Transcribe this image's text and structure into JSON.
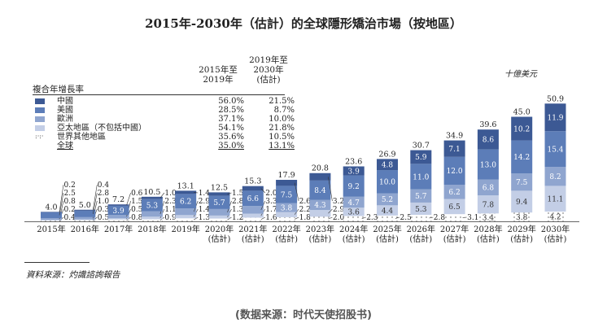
{
  "chart_data": {
    "type": "bar",
    "stacked": true,
    "title": "2015年-2030年（估計）的全球隱形矯治市場（按地區）",
    "unit": "十億美元",
    "categories": [
      "2015年",
      "2016年",
      "2017年",
      "2018年",
      "2019年",
      "2020年",
      "2021年",
      "2022年",
      "2023年",
      "2024年",
      "2025年",
      "2026年",
      "2027年",
      "2028年",
      "2029年",
      "2030年"
    ],
    "category_sub": [
      "",
      "",
      "",
      "",
      "",
      "(估計)",
      "(估計)",
      "(估計)",
      "(估計)",
      "(估計)",
      "(估計)",
      "(估計)",
      "(估計)",
      "(估計)",
      "(估計)",
      "(估計)"
    ],
    "totals": [
      4.0,
      5.0,
      7.2,
      10.5,
      13.1,
      12.5,
      15.3,
      17.9,
      20.8,
      23.6,
      26.9,
      30.7,
      34.9,
      39.6,
      45.0,
      50.9
    ],
    "series": [
      {
        "name": "世界其他地區",
        "color": "#ffffff",
        "pattern": "dots",
        "values": [
          0.4,
          0.5,
          0.8,
          0.9,
          1.3,
          1.2,
          1.6,
          1.8,
          2.0,
          2.3,
          2.5,
          2.8,
          3.1,
          3.4,
          3.8,
          4.2
        ]
      },
      {
        "name": "亞太地區（不包括中國）",
        "color": "#c3cee6",
        "values": [
          0.2,
          0.3,
          0.5,
          1.1,
          1.4,
          1.3,
          1.7,
          2.2,
          2.9,
          3.6,
          4.4,
          5.3,
          6.5,
          7.8,
          9.4,
          11.1
        ]
      },
      {
        "name": "歐洲",
        "color": "#8fa5cf",
        "values": [
          0.8,
          1.0,
          1.5,
          2.3,
          2.9,
          2.8,
          3.3,
          3.8,
          4.3,
          4.7,
          5.2,
          5.7,
          6.2,
          6.8,
          7.5,
          8.2
        ]
      },
      {
        "name": "美國",
        "color": "#5c7db8",
        "values": [
          2.5,
          2.8,
          3.9,
          5.3,
          6.2,
          5.7,
          6.6,
          7.5,
          8.4,
          9.2,
          10.0,
          11.0,
          12.0,
          13.0,
          14.2,
          15.4
        ]
      },
      {
        "name": "中國",
        "color": "#3c5994",
        "values": [
          0.2,
          0.4,
          0.6,
          1.0,
          1.4,
          1.5,
          2.0,
          2.6,
          3.2,
          3.9,
          4.8,
          5.9,
          7.1,
          8.6,
          10.2,
          11.9
        ]
      }
    ],
    "ylim": [
      0,
      52
    ]
  },
  "cagr_table": {
    "heading": "複合年增長率",
    "col1": [
      "2015年至",
      "2019年"
    ],
    "col2": [
      "2019年至",
      "2030年",
      "(估計)"
    ],
    "rows": [
      {
        "name": "中國",
        "v1": "56.0%",
        "v2": "21.5%",
        "color": "#3c5994"
      },
      {
        "name": "美國",
        "v1": "28.5%",
        "v2": "8.7%",
        "color": "#5c7db8"
      },
      {
        "name": "歐洲",
        "v1": "37.1%",
        "v2": "10.0%",
        "color": "#8fa5cf"
      },
      {
        "name": "亞太地區（不包括中國）",
        "v1": "54.1%",
        "v2": "21.8%",
        "color": "#c3cee6"
      },
      {
        "name": "世界其他地區",
        "v1": "35.6%",
        "v2": "10.5%",
        "color": "dots"
      },
      {
        "name": "全球",
        "v1": "35.0%",
        "v2": "13.1%",
        "color": ""
      }
    ]
  },
  "source": "資料來源：灼識諮詢報告",
  "footer": "(数据来源：时代天使招股书)"
}
